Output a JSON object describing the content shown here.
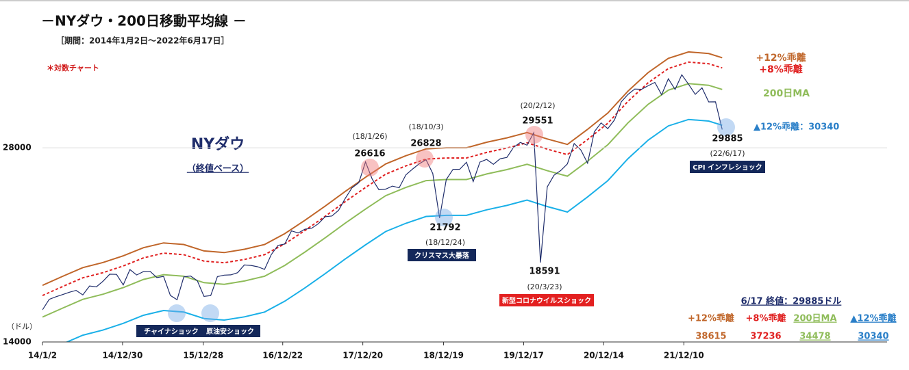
{
  "chart_data": {
    "type": "line",
    "title": "－NYダウ・200日移動平均線 －",
    "subtitle": "［期間：2014年1月2日～2022年6月17日］",
    "note": "＊対数チャート",
    "y_unit": "（ドル）",
    "main_label": "NYダウ",
    "main_sublabel": "（終値ベース）",
    "log_scale": true,
    "grid": true,
    "ylim": [
      14000,
      42000
    ],
    "yticks": [
      14000,
      28000
    ],
    "xlim": [
      0,
      125.5
    ],
    "xticks": [
      {
        "value": 0,
        "label": "14/1/2"
      },
      {
        "value": 11.9,
        "label": "14/12/30"
      },
      {
        "value": 23.9,
        "label": "15/12/28"
      },
      {
        "value": 35.7,
        "label": "16/12/22"
      },
      {
        "value": 47.6,
        "label": "17/12/20"
      },
      {
        "value": 59.6,
        "label": "18/12/19"
      },
      {
        "value": 71.5,
        "label": "19/12/17"
      },
      {
        "value": 83.4,
        "label": "20/12/14"
      },
      {
        "value": 95.3,
        "label": "21/12/10"
      }
    ],
    "series": [
      {
        "name": "NYダウ",
        "color": "#1f2d6b",
        "dash": false,
        "values": [
          15700,
          16300,
          16450,
          16580,
          16720,
          16830,
          16560,
          17100,
          17040,
          17390,
          17830,
          17820,
          17160,
          18130,
          17780,
          18000,
          18010,
          17620,
          17690,
          16530,
          16280,
          17660,
          17720,
          17425,
          16470,
          16520,
          17680,
          17770,
          17790,
          17930,
          18430,
          18400,
          18310,
          18140,
          19120,
          19760,
          19860,
          20810,
          20660,
          20940,
          21010,
          21350,
          21890,
          21950,
          22400,
          23380,
          24270,
          24720,
          26616,
          25030,
          24100,
          24160,
          24420,
          24270,
          25420,
          25960,
          26460,
          26828,
          25540,
          21792,
          25000,
          25920,
          25930,
          26590,
          24820,
          26600,
          26860,
          26400,
          26920,
          27050,
          28050,
          28540,
          28260,
          29551,
          18591,
          24350,
          25380,
          25810,
          26430,
          28430,
          27780,
          26500,
          29640,
          30600,
          29980,
          30930,
          32980,
          33870,
          34530,
          34500,
          34940,
          35360,
          33840,
          35820,
          34480,
          36340,
          35130,
          33890,
          34680,
          32980,
          32990,
          29885
        ]
      },
      {
        "name": "+12%乖離",
        "color": "#c0662a",
        "dash": false,
        "x": [
          0,
          3,
          6,
          9,
          12,
          15,
          18,
          21,
          24,
          27,
          30,
          33,
          36,
          39,
          42,
          45,
          48,
          51,
          54,
          57,
          60,
          63,
          66,
          69,
          72,
          75,
          78,
          81,
          84,
          87,
          90,
          93,
          96,
          99,
          101
        ],
        "values": [
          17136,
          17696,
          18256,
          18592,
          19040,
          19600,
          19936,
          19824,
          19376,
          19264,
          19488,
          19824,
          20608,
          21616,
          22736,
          23968,
          25200,
          26432,
          27216,
          27888,
          28000,
          28000,
          28560,
          29008,
          29568,
          28896,
          28336,
          29904,
          31696,
          34272,
          36624,
          38528,
          39424,
          39200,
          38615
        ]
      },
      {
        "name": "+8%乖離",
        "color": "#e02020",
        "dash": true,
        "x": [
          0,
          3,
          6,
          9,
          12,
          15,
          18,
          21,
          24,
          27,
          30,
          33,
          36,
          39,
          42,
          45,
          48,
          51,
          54,
          57,
          60,
          63,
          66,
          69,
          72,
          75,
          78,
          81,
          84,
          87,
          90,
          93,
          96,
          99,
          101
        ],
        "values": [
          16524,
          17064,
          17604,
          17928,
          18360,
          18900,
          19224,
          19116,
          18684,
          18576,
          18792,
          19116,
          19872,
          20844,
          21924,
          23112,
          24300,
          25488,
          26244,
          26892,
          27000,
          27000,
          27540,
          27972,
          28512,
          27864,
          27324,
          28836,
          30564,
          33048,
          35316,
          37152,
          38016,
          37800,
          37236
        ]
      },
      {
        "name": "200日MA",
        "color": "#8fbc5a",
        "dash": false,
        "x": [
          0,
          3,
          6,
          9,
          12,
          15,
          18,
          21,
          24,
          27,
          30,
          33,
          36,
          39,
          42,
          45,
          48,
          51,
          54,
          57,
          60,
          63,
          66,
          69,
          72,
          75,
          78,
          81,
          84,
          87,
          90,
          93,
          96,
          99,
          101
        ],
        "values": [
          15300,
          15800,
          16300,
          16600,
          17000,
          17500,
          17800,
          17700,
          17300,
          17200,
          17400,
          17700,
          18400,
          19300,
          20300,
          21400,
          22500,
          23600,
          24300,
          24900,
          25000,
          25000,
          25500,
          25900,
          26400,
          25800,
          25300,
          26700,
          28300,
          30600,
          32700,
          34400,
          35200,
          35000,
          34478
        ]
      },
      {
        "name": "▲12%乖離",
        "color": "#1ab0e8",
        "dash": false,
        "x": [
          0,
          3,
          6,
          9,
          12,
          15,
          18,
          21,
          24,
          27,
          30,
          33,
          36,
          39,
          42,
          45,
          48,
          51,
          54,
          57,
          60,
          63,
          66,
          69,
          72,
          75,
          78,
          81,
          84,
          87,
          90,
          93,
          96,
          99,
          101
        ],
        "values": [
          13464,
          13904,
          14344,
          14608,
          14960,
          15400,
          15664,
          15576,
          15224,
          15136,
          15312,
          15576,
          16192,
          16984,
          17864,
          18832,
          19800,
          20768,
          21384,
          21912,
          22000,
          22000,
          22440,
          22792,
          23232,
          22704,
          22264,
          23496,
          24904,
          26928,
          28776,
          30272,
          30976,
          30800,
          30340
        ]
      }
    ],
    "callouts": [
      "(18/1/26)",
      "(18/10/3)",
      "(18/12/24)",
      "(20/2/12)",
      "(20/3/23)",
      "(22/6/17)"
    ],
    "events": [
      "チャイナショック",
      "原油安ショック",
      "クリスマス大暴落",
      "新型コロナウイルスショック",
      "CPI インフレショック"
    ],
    "right_labels": [
      "+12%乖離",
      "+8%乖離",
      "200日MA",
      "▲12%乖離：30340"
    ],
    "summary_title": "6/17 終値：29885ドル"
  }
}
